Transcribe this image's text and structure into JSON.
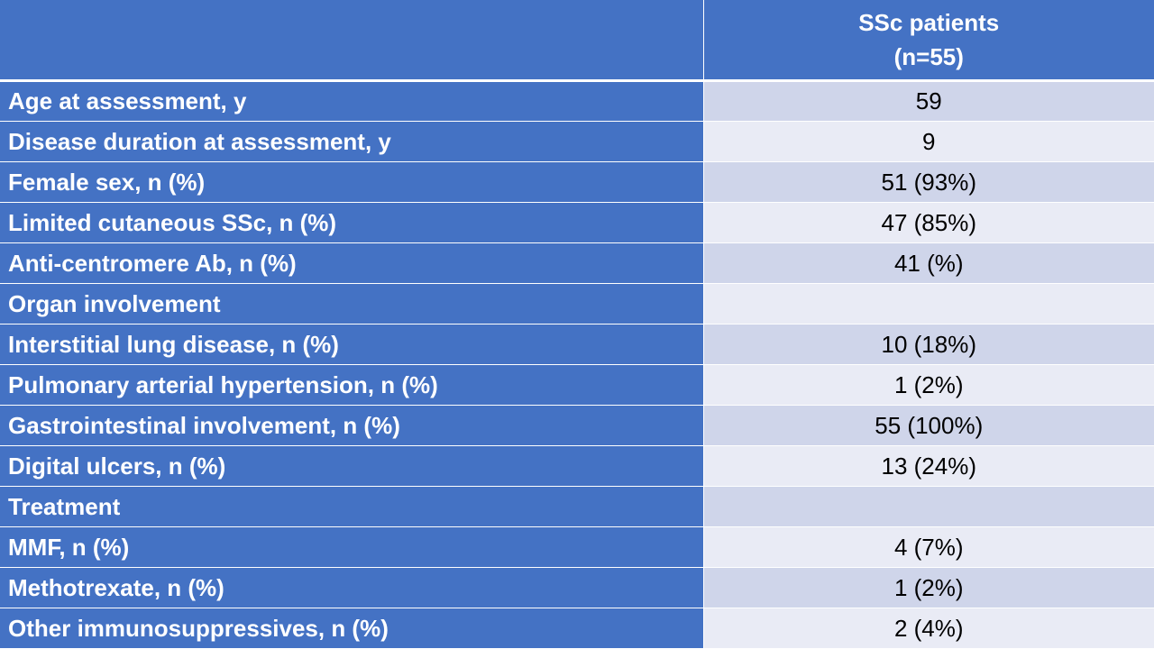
{
  "header": {
    "col1": "",
    "col2_line1": "SSc patients",
    "col2_line2": "(n=55)"
  },
  "rows": [
    {
      "label": "Age at assessment, y",
      "value": "59"
    },
    {
      "label": "Disease duration at assessment, y",
      "value": "9"
    },
    {
      "label": "Female sex, n (%)",
      "value": "51 (93%)"
    },
    {
      "label": "Limited cutaneous SSc, n (%)",
      "value": "47 (85%)"
    },
    {
      "label": "Anti-centromere Ab, n (%)",
      "value": "41 (%)"
    },
    {
      "label": "Organ involvement",
      "value": ""
    },
    {
      "label": "Interstitial lung disease, n (%)",
      "value": "10 (18%)"
    },
    {
      "label": "Pulmonary arterial hypertension, n (%)",
      "value": "1 (2%)"
    },
    {
      "label": "Gastrointestinal involvement, n (%)",
      "value": "55 (100%)"
    },
    {
      "label": "Digital ulcers, n (%)",
      "value": "13 (24%)"
    },
    {
      "label": "Treatment",
      "value": ""
    },
    {
      "label": "MMF, n (%)",
      "value": "4 (7%)"
    },
    {
      "label": "Methotrexate, n (%)",
      "value": "1 (2%)"
    },
    {
      "label": "Other immunosuppressives, n (%)",
      "value": "2 (4%)"
    }
  ],
  "colors": {
    "label_bg": "#4472c4",
    "band_dark": "#cfd5ea",
    "band_light": "#e9ebf5",
    "header_text": "#ffffff"
  }
}
